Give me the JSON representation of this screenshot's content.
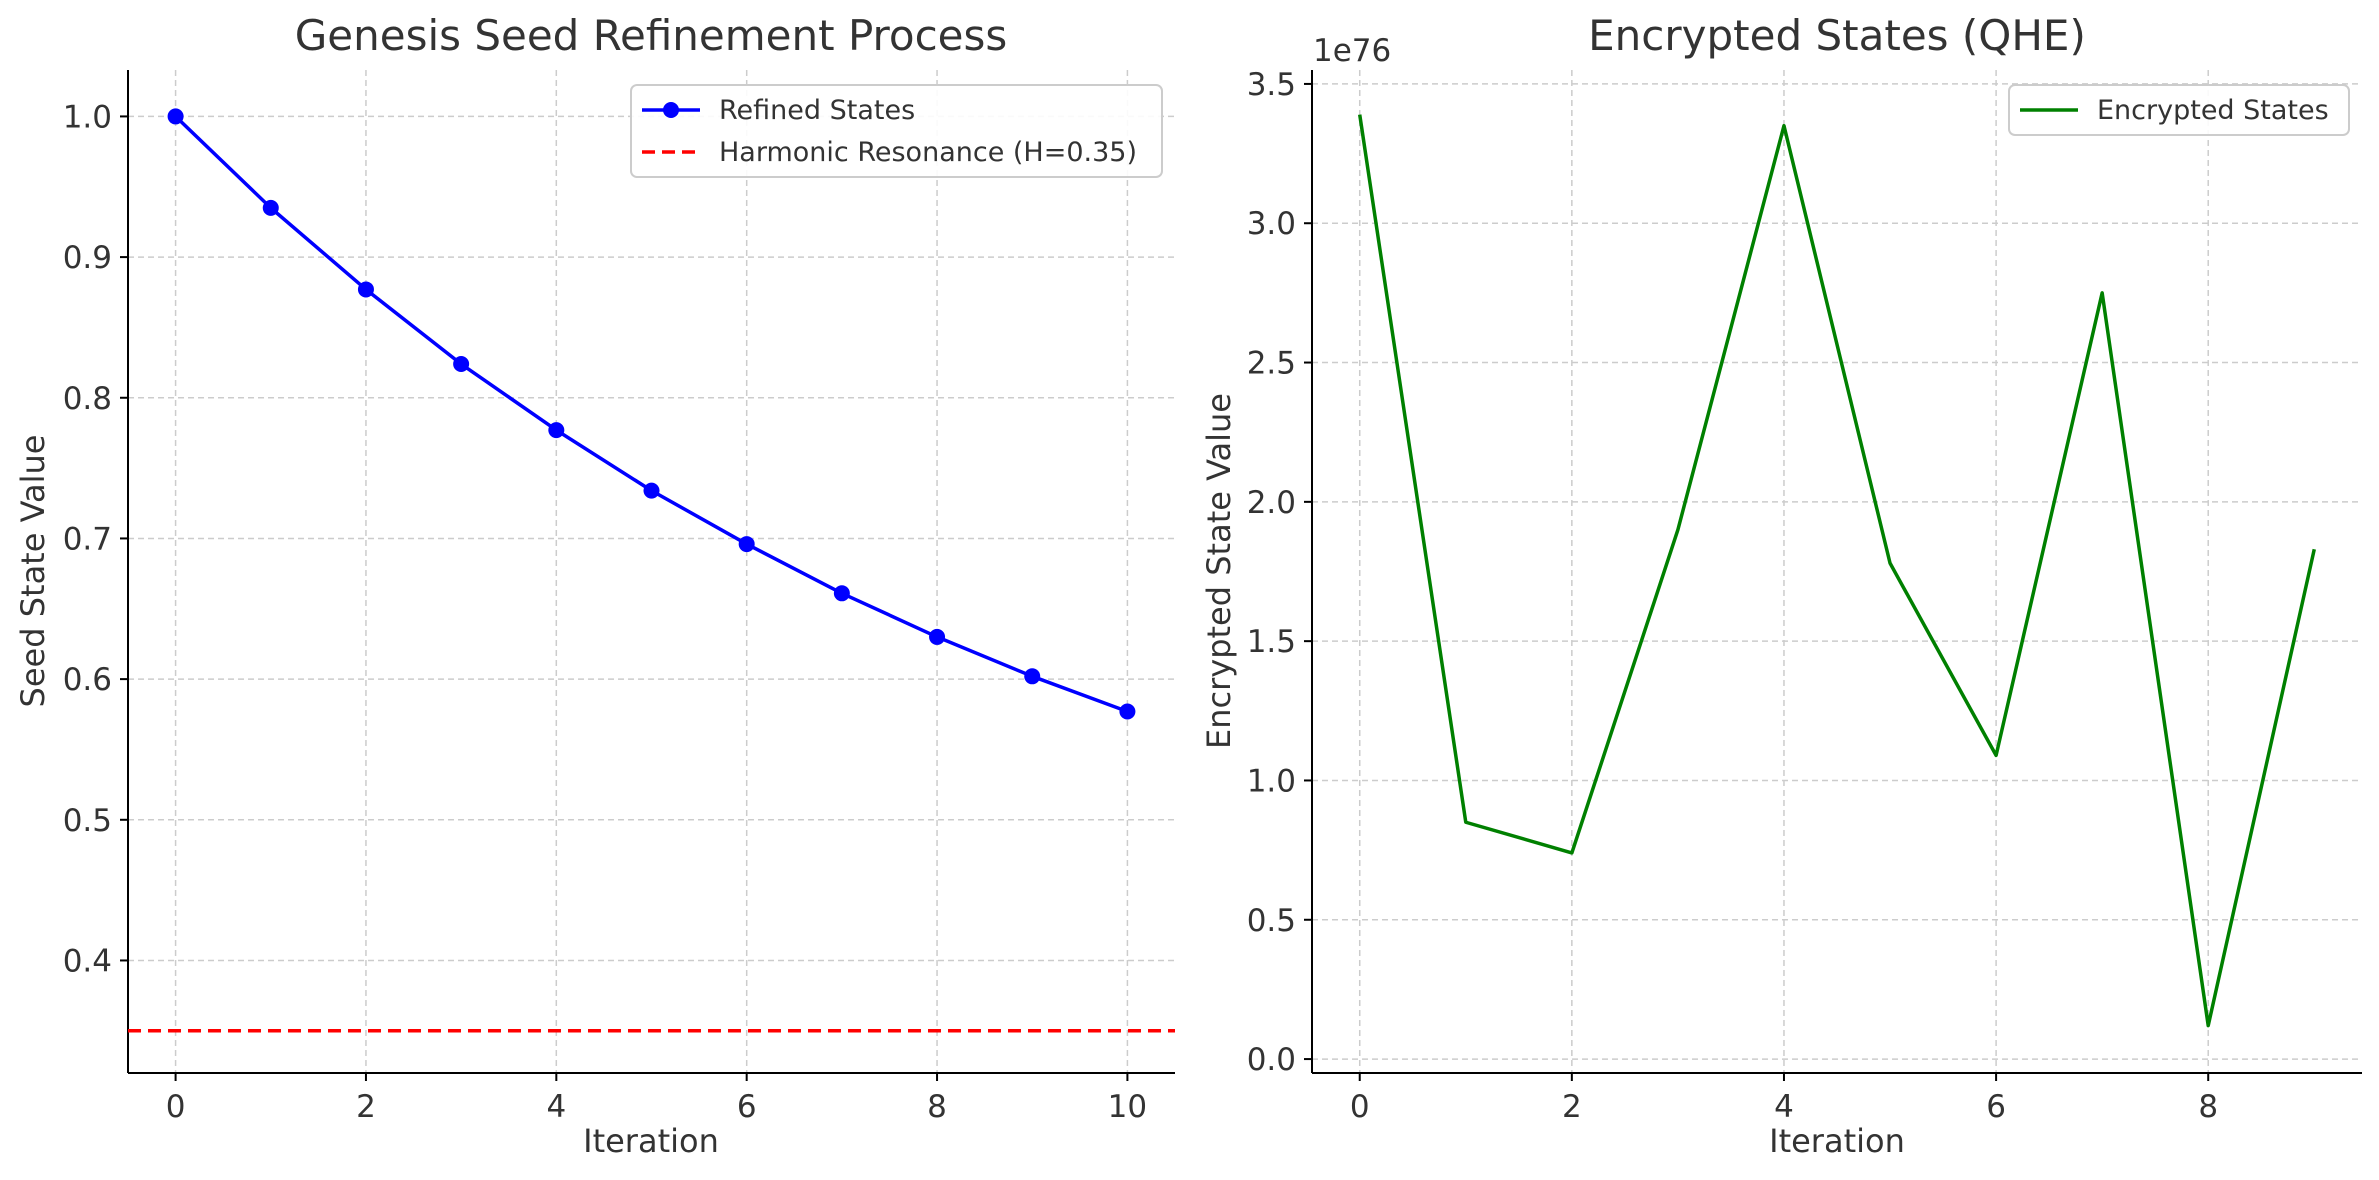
{
  "chart_data": [
    {
      "type": "line",
      "title": "Genesis Seed Refinement Process",
      "xlabel": "Iteration",
      "ylabel": "Seed State Value",
      "xlim": [
        -0.5,
        10.5
      ],
      "ylim": [
        0.32,
        1.033
      ],
      "xticks": [
        0,
        2,
        4,
        6,
        8,
        10
      ],
      "xtick_labels": [
        "0",
        "2",
        "4",
        "6",
        "8",
        "10"
      ],
      "yticks": [
        0.4,
        0.5,
        0.6,
        0.7,
        0.8,
        0.9,
        1.0
      ],
      "ytick_labels": [
        "0.4",
        "0.5",
        "0.6",
        "0.7",
        "0.8",
        "0.9",
        "1.0"
      ],
      "grid": true,
      "legend_position": "top-right",
      "series": [
        {
          "name": "Refined States",
          "color": "#0000ff",
          "marker": "circle",
          "x": [
            0,
            1,
            2,
            3,
            4,
            5,
            6,
            7,
            8,
            9,
            10
          ],
          "values": [
            1.0,
            0.935,
            0.877,
            0.824,
            0.777,
            0.734,
            0.696,
            0.661,
            0.63,
            0.602,
            0.577
          ]
        }
      ],
      "reference_lines": [
        {
          "name": "Harmonic Resonance (H=0.35)",
          "y": 0.35,
          "color": "#ff0000",
          "style": "dashed"
        }
      ]
    },
    {
      "type": "line",
      "title": "Encrypted States (QHE)",
      "xlabel": "Iteration",
      "ylabel": "Encrypted State Value",
      "offset_label": "1e76",
      "xlim": [
        -0.45,
        9.45
      ],
      "ylim": [
        -0.05,
        3.55
      ],
      "xticks": [
        0,
        2,
        4,
        6,
        8
      ],
      "xtick_labels": [
        "0",
        "2",
        "4",
        "6",
        "8"
      ],
      "yticks": [
        0.0,
        0.5,
        1.0,
        1.5,
        2.0,
        2.5,
        3.0,
        3.5
      ],
      "ytick_labels": [
        "0.0",
        "0.5",
        "1.0",
        "1.5",
        "2.0",
        "2.5",
        "3.0",
        "3.5"
      ],
      "grid": true,
      "legend_position": "top-right",
      "series": [
        {
          "name": "Encrypted States",
          "color": "#008000",
          "x": [
            0,
            1,
            2,
            3,
            4,
            5,
            6,
            7,
            8,
            9
          ],
          "values": [
            3.39,
            0.85,
            0.74,
            1.9,
            3.35,
            1.78,
            1.09,
            2.75,
            0.12,
            1.83
          ]
        }
      ]
    }
  ]
}
